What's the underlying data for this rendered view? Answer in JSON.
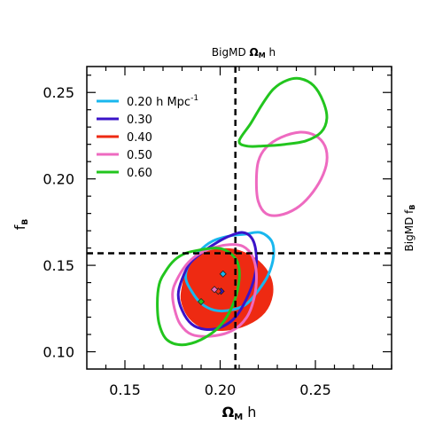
{
  "chart_data": {
    "type": "line",
    "xlim": [
      0.13,
      0.29
    ],
    "ylim": [
      0.09,
      0.265
    ],
    "x_ticks": [
      {
        "value": 0.15,
        "label": "0.15"
      },
      {
        "value": 0.2,
        "label": "0.20"
      },
      {
        "value": 0.25,
        "label": "0.25"
      }
    ],
    "y_ticks": [
      {
        "value": 0.1,
        "label": "0.10"
      },
      {
        "value": 0.15,
        "label": "0.15"
      },
      {
        "value": 0.2,
        "label": "0.20"
      },
      {
        "value": 0.25,
        "label": "0.25"
      }
    ],
    "xlabel": {
      "main": "Ω",
      "sub": "M",
      "rest": " h"
    },
    "ylabel": {
      "main": "f",
      "sub": "B"
    },
    "top_label": {
      "prefix": "BigMD ",
      "main": "Ω",
      "sub": "M",
      "rest": " h"
    },
    "right_label": {
      "prefix": "BigMD f",
      "sub": "B"
    },
    "reference_lines": {
      "x": 0.208,
      "y": 0.157
    },
    "legend": {
      "placement": "top-left",
      "entries": [
        {
          "label": "0.20",
          "suffix": " h Mpc",
          "sup": "-1",
          "color": "#19b7ee"
        },
        {
          "label": "0.30",
          "color": "#3a13c8"
        },
        {
          "label": "0.40",
          "color": "#ee2a12"
        },
        {
          "label": "0.50",
          "color": "#ee6ac0"
        },
        {
          "label": "0.60",
          "color": "#22c51e"
        }
      ]
    },
    "series": [
      {
        "name": "0.20",
        "color": "#19b7ee",
        "fill": false,
        "center": [
          0.2015,
          0.145
        ],
        "contours": [
          [
            [
              0.183,
              0.149
            ],
            [
              0.189,
              0.158
            ],
            [
              0.196,
              0.164
            ],
            [
              0.205,
              0.167
            ],
            [
              0.213,
              0.168
            ],
            [
              0.221,
              0.169
            ],
            [
              0.227,
              0.164
            ],
            [
              0.228,
              0.155
            ],
            [
              0.225,
              0.144
            ],
            [
              0.219,
              0.134
            ],
            [
              0.213,
              0.127
            ],
            [
              0.205,
              0.124
            ],
            [
              0.197,
              0.124
            ],
            [
              0.19,
              0.128
            ],
            [
              0.185,
              0.135
            ],
            [
              0.182,
              0.142
            ]
          ]
        ]
      },
      {
        "name": "0.30",
        "color": "#3a13c8",
        "fill": false,
        "center": [
          0.2005,
          0.135
        ],
        "contours": [
          [
            [
              0.18,
              0.142
            ],
            [
              0.184,
              0.151
            ],
            [
              0.19,
              0.157
            ],
            [
              0.198,
              0.163
            ],
            [
              0.205,
              0.167
            ],
            [
              0.212,
              0.169
            ],
            [
              0.217,
              0.165
            ],
            [
              0.219,
              0.155
            ],
            [
              0.218,
              0.143
            ],
            [
              0.214,
              0.131
            ],
            [
              0.208,
              0.12
            ],
            [
              0.2,
              0.114
            ],
            [
              0.192,
              0.113
            ],
            [
              0.185,
              0.116
            ],
            [
              0.18,
              0.124
            ],
            [
              0.178,
              0.133
            ]
          ]
        ]
      },
      {
        "name": "0.40",
        "color": "#ee2a12",
        "fill": true,
        "center": [
          0.199,
          0.135
        ],
        "contours": [
          [
            [
              0.181,
              0.14
            ],
            [
              0.183,
              0.149
            ],
            [
              0.19,
              0.156
            ],
            [
              0.2,
              0.159
            ],
            [
              0.21,
              0.158
            ],
            [
              0.22,
              0.152
            ],
            [
              0.226,
              0.143
            ],
            [
              0.227,
              0.133
            ],
            [
              0.223,
              0.123
            ],
            [
              0.214,
              0.116
            ],
            [
              0.203,
              0.113
            ],
            [
              0.192,
              0.114
            ],
            [
              0.184,
              0.12
            ],
            [
              0.18,
              0.13
            ]
          ]
        ]
      },
      {
        "name": "0.50",
        "color": "#ee6ac0",
        "fill": false,
        "center": [
          0.197,
          0.136
        ],
        "contours": [
          [
            [
              0.177,
              0.141
            ],
            [
              0.182,
              0.15
            ],
            [
              0.188,
              0.156
            ],
            [
              0.196,
              0.16
            ],
            [
              0.205,
              0.162
            ],
            [
              0.212,
              0.161
            ],
            [
              0.217,
              0.155
            ],
            [
              0.219,
              0.145
            ],
            [
              0.218,
              0.132
            ],
            [
              0.214,
              0.12
            ],
            [
              0.206,
              0.112
            ],
            [
              0.195,
              0.109
            ],
            [
              0.185,
              0.11
            ],
            [
              0.179,
              0.116
            ],
            [
              0.176,
              0.125
            ],
            [
              0.175,
              0.134
            ]
          ],
          [
            [
              0.22,
              0.21
            ],
            [
              0.224,
              0.218
            ],
            [
              0.232,
              0.224
            ],
            [
              0.242,
              0.227
            ],
            [
              0.25,
              0.225
            ],
            [
              0.255,
              0.219
            ],
            [
              0.256,
              0.21
            ],
            [
              0.253,
              0.2
            ],
            [
              0.247,
              0.19
            ],
            [
              0.24,
              0.183
            ],
            [
              0.231,
              0.179
            ],
            [
              0.224,
              0.18
            ],
            [
              0.22,
              0.187
            ],
            [
              0.219,
              0.198
            ]
          ]
        ]
      },
      {
        "name": "0.60",
        "color": "#22c51e",
        "fill": false,
        "center": [
          0.19,
          0.129
        ],
        "contours": [
          [
            [
              0.171,
              0.146
            ],
            [
              0.176,
              0.153
            ],
            [
              0.182,
              0.157
            ],
            [
              0.19,
              0.159
            ],
            [
              0.198,
              0.16
            ],
            [
              0.204,
              0.158
            ],
            [
              0.209,
              0.152
            ],
            [
              0.21,
              0.142
            ],
            [
              0.207,
              0.128
            ],
            [
              0.2,
              0.115
            ],
            [
              0.19,
              0.107
            ],
            [
              0.18,
              0.104
            ],
            [
              0.172,
              0.107
            ],
            [
              0.168,
              0.116
            ],
            [
              0.167,
              0.128
            ],
            [
              0.168,
              0.139
            ]
          ],
          [
            [
              0.21,
              0.222
            ],
            [
              0.216,
              0.232
            ],
            [
              0.222,
              0.243
            ],
            [
              0.228,
              0.252
            ],
            [
              0.235,
              0.257
            ],
            [
              0.242,
              0.258
            ],
            [
              0.249,
              0.254
            ],
            [
              0.254,
              0.245
            ],
            [
              0.256,
              0.235
            ],
            [
              0.253,
              0.227
            ],
            [
              0.245,
              0.222
            ],
            [
              0.234,
              0.22
            ],
            [
              0.222,
              0.219
            ],
            [
              0.214,
              0.219
            ]
          ]
        ]
      }
    ]
  }
}
